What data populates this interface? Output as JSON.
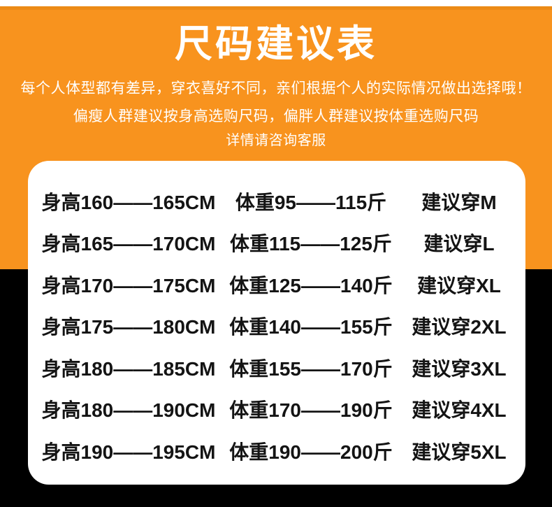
{
  "header": {
    "title": "尺码建议表",
    "intro_lines": [
      "每个人体型都有差异，穿衣喜好不同，亲们根据个人的实际情况做出选择哦！",
      "偏瘦人群建议按身高选购尺码，偏胖人群建议按体重选购尺码",
      "详情请咨询客服"
    ]
  },
  "size_table": {
    "rows": [
      {
        "height": "身高160——165CM",
        "weight": "体重95——115斤",
        "suggestion": "建议穿M"
      },
      {
        "height": "身高165——170CM",
        "weight": "体重115——125斤",
        "suggestion": "建议穿L"
      },
      {
        "height": "身高170——175CM",
        "weight": "体重125——140斤",
        "suggestion": "建议穿XL"
      },
      {
        "height": "身高175——180CM",
        "weight": "体重140——155斤",
        "suggestion": "建议穿2XL"
      },
      {
        "height": "身高180——185CM",
        "weight": "体重155——170斤",
        "suggestion": "建议穿3XL"
      },
      {
        "height": "身高180——190CM",
        "weight": "体重170——190斤",
        "suggestion": "建议穿4XL"
      },
      {
        "height": "身高190——195CM",
        "weight": "体重190——200斤",
        "suggestion": "建议穿5XL"
      }
    ]
  },
  "colors": {
    "orange": "#F8931E",
    "orange_dark": "#EC8A16",
    "black": "#000000",
    "card": "#FFFFFF",
    "title_text": "#FFFFFF",
    "table_text": "#141414"
  }
}
